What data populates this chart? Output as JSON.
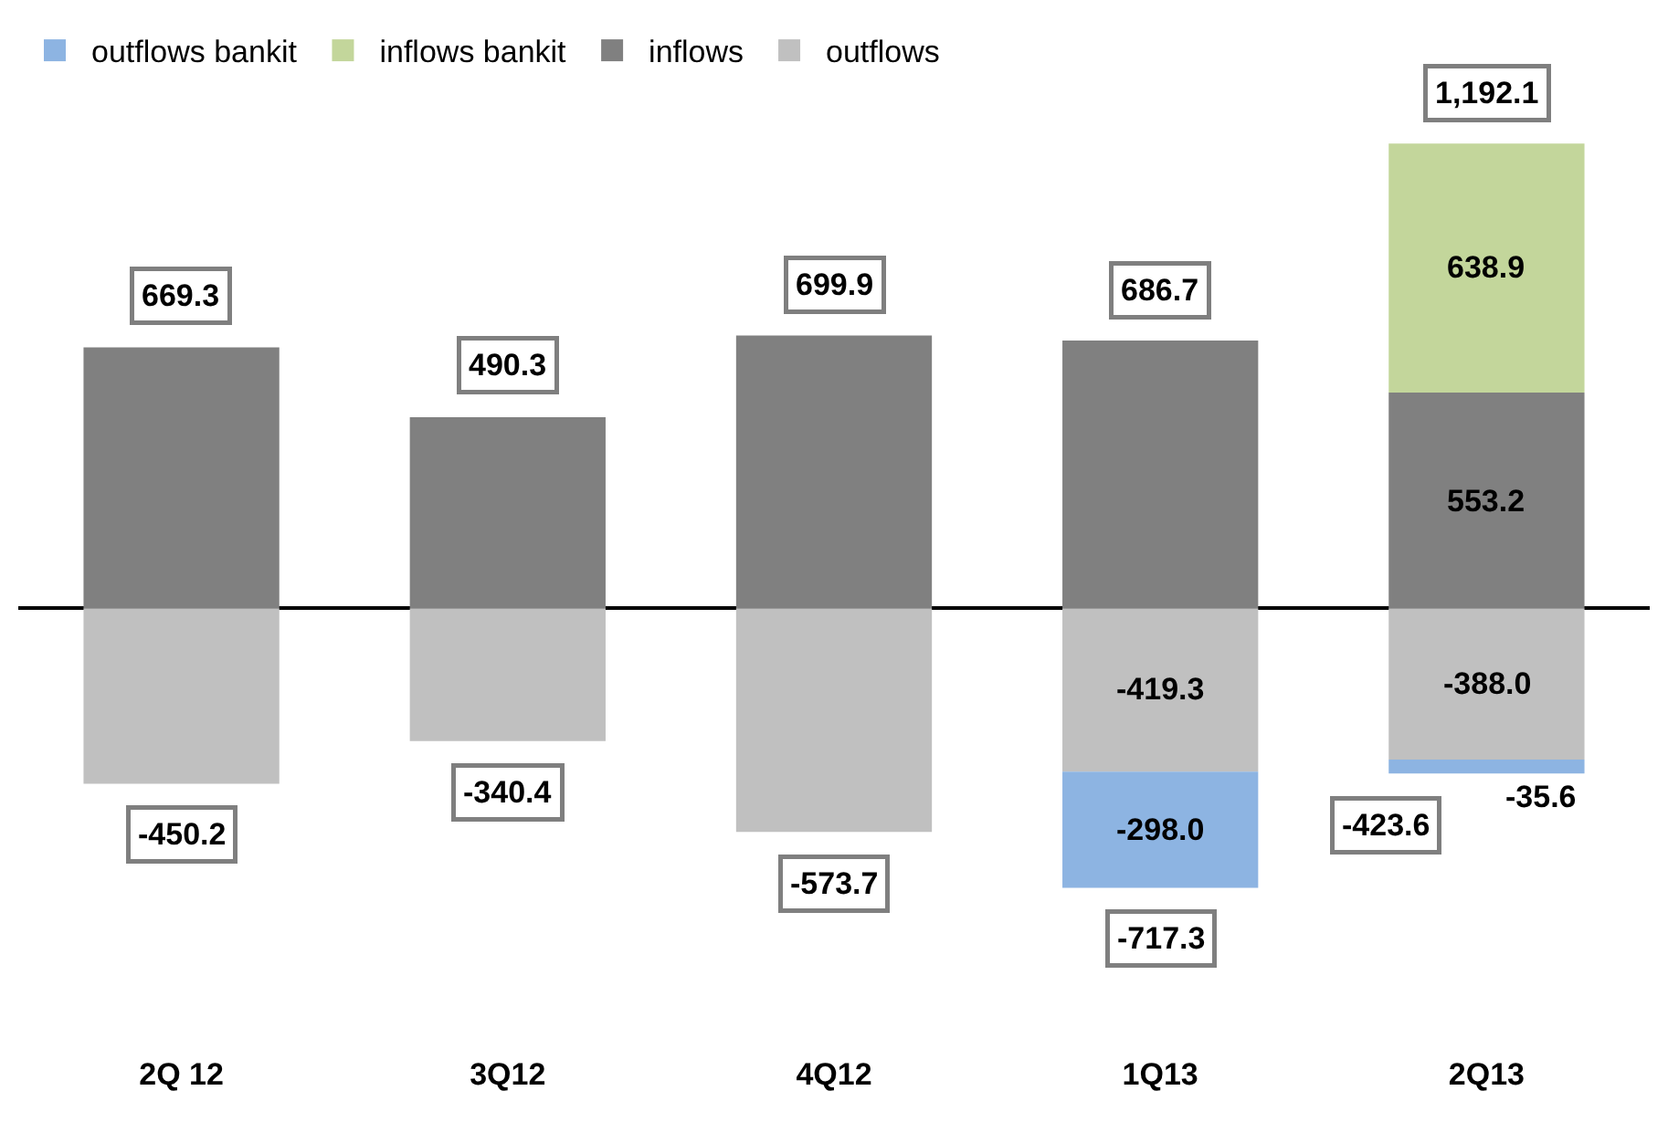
{
  "chart_data": {
    "type": "bar",
    "stacked": true,
    "categories": [
      "2Q 12",
      "3Q12",
      "4Q12",
      "1Q13",
      "2Q13"
    ],
    "series": [
      {
        "name": "inflows",
        "color": "#808080",
        "values": [
          669.3,
          490.3,
          699.9,
          686.7,
          553.2
        ],
        "value_labels": [
          null,
          null,
          null,
          null,
          "553.2"
        ]
      },
      {
        "name": "outflows",
        "color": "#c0c0c0",
        "values": [
          -450.2,
          -340.4,
          -573.7,
          -419.3,
          -388.0
        ],
        "value_labels": [
          null,
          null,
          null,
          "-419.3",
          "-388.0"
        ]
      },
      {
        "name": "outflows bankit",
        "color": "#8db4e2",
        "values": [
          null,
          null,
          null,
          -298.0,
          -35.6
        ],
        "value_labels": [
          null,
          null,
          null,
          "-298.0",
          "-35.6"
        ]
      },
      {
        "name": "inflows bankit",
        "color": "#c3d69b",
        "values": [
          null,
          null,
          null,
          null,
          638.9
        ],
        "value_labels": [
          null,
          null,
          null,
          null,
          "638.9"
        ]
      }
    ],
    "annotations": [
      {
        "text": "669.3",
        "x": "2Q 12",
        "y": 669.3
      },
      {
        "text": "490.3",
        "x": "3Q12",
        "y": 490.3
      },
      {
        "text": "699.9",
        "x": "4Q12",
        "y": 699.9
      },
      {
        "text": "686.7",
        "x": "1Q13",
        "y": 686.7
      },
      {
        "text": "1,192.1",
        "x": "2Q13",
        "y": 1192.1
      },
      {
        "text": "-450.2",
        "x": "2Q 12",
        "y": -450.2
      },
      {
        "text": "-340.4",
        "x": "3Q12",
        "y": -340.4
      },
      {
        "text": "-573.7",
        "x": "4Q12",
        "y": -573.7
      },
      {
        "text": "-717.3",
        "x": "1Q13",
        "y": -717.3
      },
      {
        "text": "-423.6",
        "x": "2Q13",
        "y": -423.6
      }
    ],
    "legend": "top left"
  }
}
